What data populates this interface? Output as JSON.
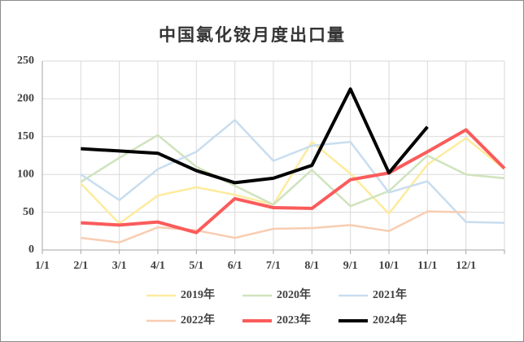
{
  "chart_data": {
    "type": "line",
    "title": "中国氯化铵月度出口量",
    "categories": [
      "1/1",
      "2/1",
      "3/1",
      "4/1",
      "5/1",
      "6/1",
      "7/1",
      "8/1",
      "9/1",
      "10/1",
      "11/1",
      "12/1",
      null
    ],
    "series": [
      {
        "name": "2019年",
        "color": "#fdeb9e",
        "values": [
          null,
          88,
          35,
          72,
          83,
          73,
          60,
          143,
          101,
          48,
          113,
          148,
          107
        ]
      },
      {
        "name": "2020年",
        "color": "#cfe3bd",
        "values": [
          null,
          90,
          122,
          152,
          110,
          85,
          60,
          106,
          58,
          78,
          125,
          100,
          95
        ]
      },
      {
        "name": "2021年",
        "color": "#c8ddef",
        "values": [
          null,
          100,
          66,
          107,
          130,
          172,
          118,
          138,
          143,
          76,
          91,
          37,
          36
        ]
      },
      {
        "name": "2022年",
        "color": "#f8cdb2",
        "values": [
          null,
          16,
          10,
          30,
          26,
          16,
          28,
          29,
          33,
          25,
          51,
          50,
          null
        ]
      },
      {
        "name": "2023年",
        "color": "#fb5b5b",
        "values": [
          null,
          36,
          33,
          37,
          23,
          68,
          56,
          55,
          93,
          102,
          130,
          159,
          108
        ]
      },
      {
        "name": "2024年",
        "color": "#000000",
        "values": [
          null,
          134,
          131,
          128,
          105,
          89,
          95,
          112,
          213,
          102,
          163,
          null,
          null
        ]
      }
    ],
    "ylim": [
      0,
      250
    ],
    "yticks": [
      0,
      50,
      100,
      150,
      200,
      250
    ],
    "grid": true,
    "legend": "bottom"
  }
}
